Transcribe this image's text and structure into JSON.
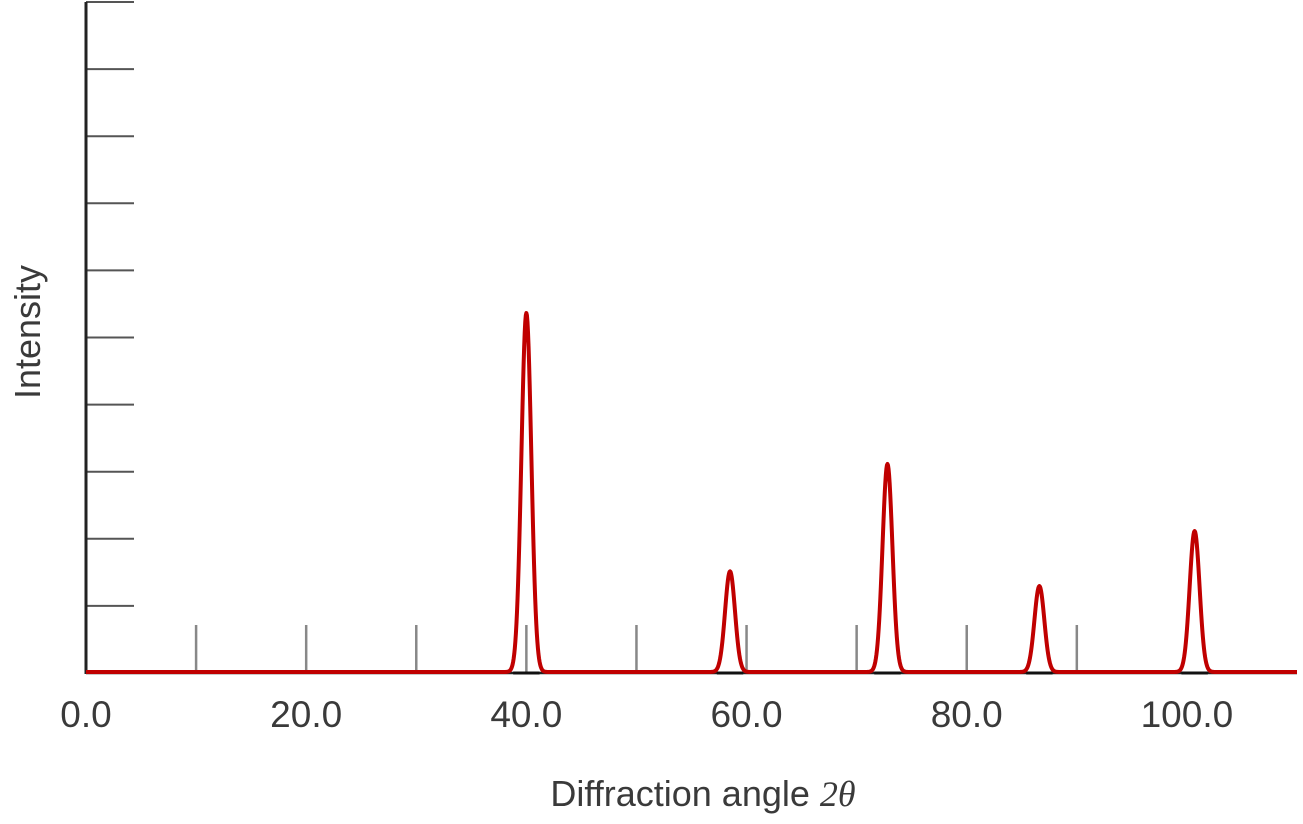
{
  "chart_data": {
    "type": "line",
    "title": "",
    "xlabel": "Diffraction angle 2θ",
    "xlabel_text": "Diffraction angle ",
    "xlabel_math": "2θ",
    "ylabel": "Intensity",
    "xlim": [
      0,
      110
    ],
    "ylim": [
      0,
      10
    ],
    "x_tick_labels": [
      "0.0",
      "20.0",
      "40.0",
      "60.0",
      "80.0",
      "100.0"
    ],
    "x_tick_values": [
      0,
      20,
      40,
      60,
      80,
      100
    ],
    "x_minor_ticks": [
      10,
      20,
      30,
      40,
      50,
      60,
      70,
      80,
      90
    ],
    "y_ticks": [
      1,
      2,
      3,
      4,
      5,
      6,
      7,
      8,
      9,
      10
    ],
    "y_tick_labels_shown": false,
    "grid": false,
    "legend": "none",
    "series": [
      {
        "color": "#c00000",
        "peaks": [
          {
            "x": 40.0,
            "y": 5.35
          },
          {
            "x": 58.5,
            "y": 1.5
          },
          {
            "x": 72.8,
            "y": 3.1
          },
          {
            "x": 86.6,
            "y": 1.28
          },
          {
            "x": 100.7,
            "y": 2.1
          }
        ]
      }
    ]
  }
}
